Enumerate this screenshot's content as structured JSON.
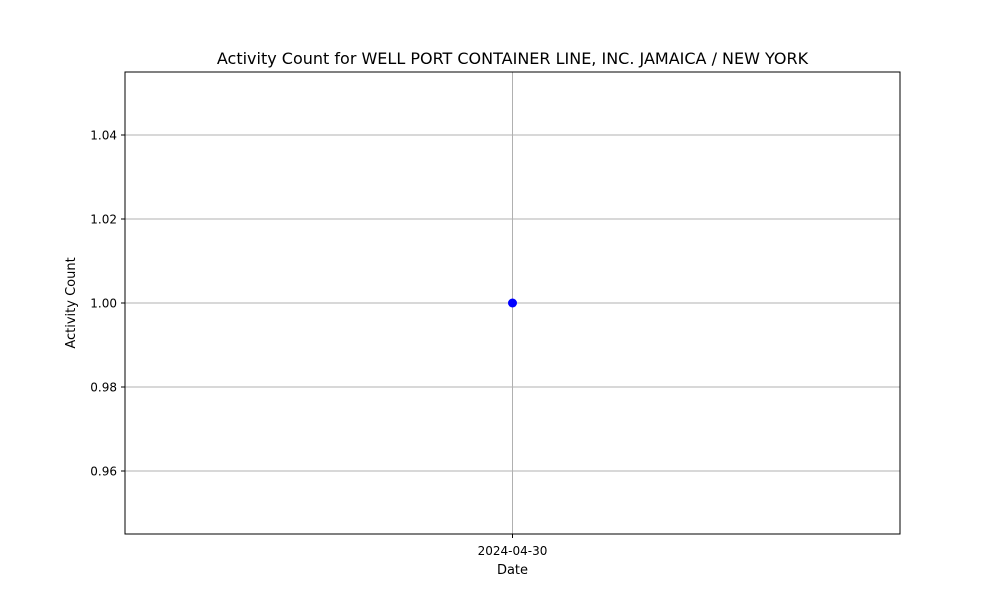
{
  "chart_data": {
    "type": "line",
    "title": "Activity Count for WELL PORT CONTAINER LINE, INC. JAMAICA / NEW YORK",
    "xlabel": "Date",
    "ylabel": "Activity Count",
    "x": [
      "2024-04-30"
    ],
    "series": [
      {
        "values": [
          1.0
        ],
        "color": "#0000ff",
        "marker": "circle"
      }
    ],
    "ylim": [
      0.945,
      1.055
    ],
    "yticks": [
      0.96,
      0.98,
      1.0,
      1.02,
      1.04
    ],
    "ytick_labels": [
      "0.96",
      "0.98",
      "1.00",
      "1.02",
      "1.04"
    ],
    "xtick_labels": [
      "2024-04-30"
    ],
    "grid": true
  }
}
